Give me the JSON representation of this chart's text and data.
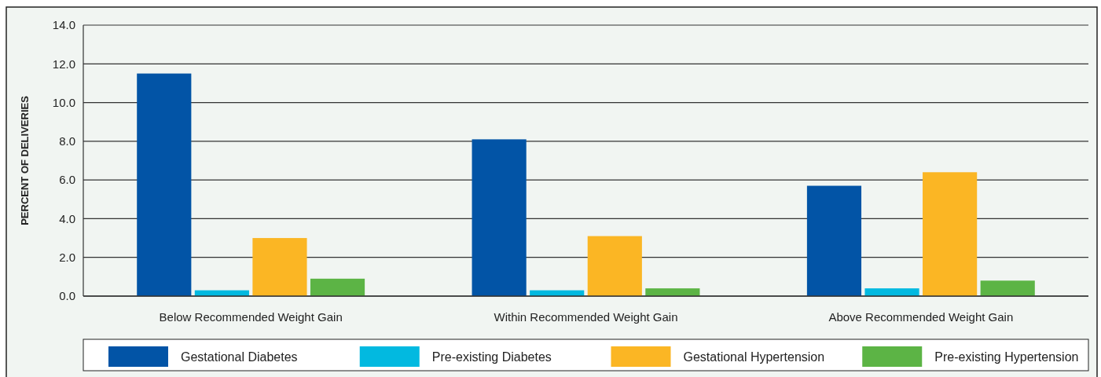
{
  "chart_data": {
    "type": "bar",
    "ylabel": "PERCENT OF DELIVERIES",
    "categories": [
      "Below Recommended Weight Gain",
      "Within Recommended Weight Gain",
      "Above Recommended Weight Gain"
    ],
    "series": [
      {
        "name": "Gestational Diabetes",
        "color": "#0254a6",
        "values": [
          11.5,
          8.1,
          5.7
        ]
      },
      {
        "name": "Pre-existing Diabetes",
        "color": "#02b9e0",
        "values": [
          0.3,
          0.3,
          0.4
        ]
      },
      {
        "name": "Gestational Hypertension",
        "color": "#fbb624",
        "values": [
          3.0,
          3.1,
          6.4
        ]
      },
      {
        "name": "Pre-existing Hypertension",
        "color": "#5cb445",
        "values": [
          0.9,
          0.4,
          0.8
        ]
      }
    ],
    "ylim": [
      0,
      14
    ],
    "yticks": [
      {
        "value": 0,
        "label": "0.0"
      },
      {
        "value": 2,
        "label": "2.0"
      },
      {
        "value": 4,
        "label": "4.0"
      },
      {
        "value": 6,
        "label": "6.0"
      },
      {
        "value": 8,
        "label": "8.0"
      },
      {
        "value": 10,
        "label": "10.0"
      },
      {
        "value": 12,
        "label": "12.0"
      },
      {
        "value": 14,
        "label": "14.0"
      }
    ],
    "grid": "y",
    "legend": "bottom"
  }
}
